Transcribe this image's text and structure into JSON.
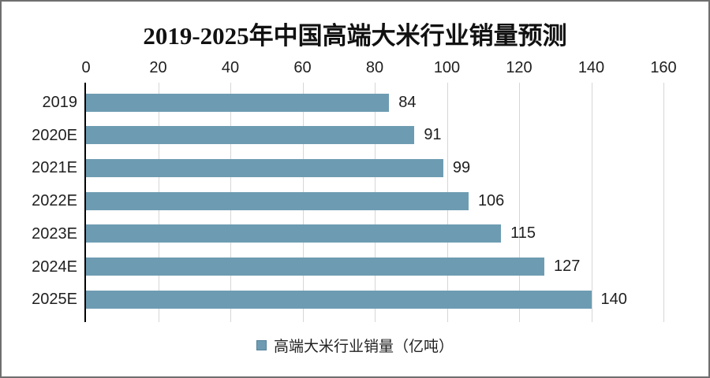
{
  "frame": {
    "border_color": "#6f6f6f",
    "background_color": "#ffffff"
  },
  "chart_data": {
    "type": "bar",
    "orientation": "horizontal",
    "title": "2019-2025年中国高端大米行业销量预测",
    "categories": [
      "2019",
      "2020E",
      "2021E",
      "2022E",
      "2023E",
      "2024E",
      "2025E"
    ],
    "values": [
      84,
      91,
      99,
      106,
      115,
      127,
      140
    ],
    "series_name": "高端大米行业销量（亿吨）",
    "xlim": [
      0,
      160
    ],
    "x_ticks": [
      0,
      20,
      40,
      60,
      80,
      100,
      120,
      140,
      160
    ],
    "grid": true,
    "value_labels_shown": true,
    "legend_position": "bottom",
    "bar_color": "#6d9cb2",
    "gridline_color": "#d6d6d6",
    "axis_color": "#000000",
    "text_color": "#1f1f1f"
  },
  "legend": {
    "label": "高端大米行业销量（亿吨）"
  }
}
